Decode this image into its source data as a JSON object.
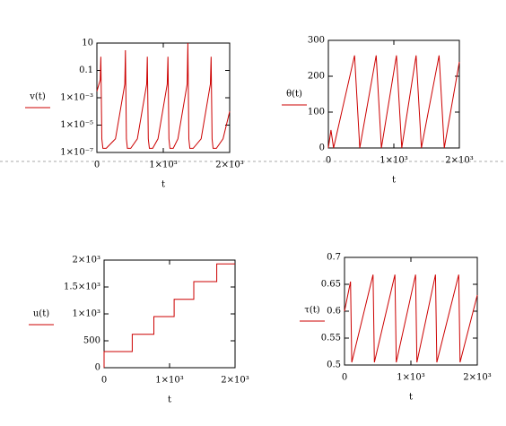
{
  "chart_data": [
    {
      "type": "line",
      "ylabel": "v(t)",
      "xlabel": "t",
      "log_y": true,
      "color": "#cc0000",
      "x": [
        0,
        50,
        60,
        75,
        90,
        140,
        280,
        420,
        430,
        445,
        460,
        510,
        610,
        750,
        760,
        775,
        790,
        840,
        920,
        1060,
        1070,
        1085,
        1100,
        1150,
        1220,
        1360,
        1370,
        1385,
        1400,
        1450,
        1570,
        1710,
        1720,
        1735,
        1750,
        1800,
        1900,
        2000
      ],
      "values": [
        0.003,
        0.02,
        1,
        1e-06,
        2e-07,
        2e-07,
        1e-06,
        0.01,
        3,
        1e-06,
        2e-07,
        2e-07,
        1e-06,
        0.01,
        1,
        1e-06,
        2e-07,
        2e-07,
        1e-06,
        0.01,
        1,
        1e-06,
        2e-07,
        2e-07,
        1e-06,
        0.01,
        10,
        1e-06,
        2e-07,
        2e-07,
        1e-06,
        0.01,
        1,
        1e-06,
        2e-07,
        2e-07,
        1e-06,
        0.0001
      ],
      "xlim": [
        0,
        2000
      ],
      "xticks": [
        0,
        {
          "value": 1000,
          "label": "1×10³"
        },
        {
          "value": 2000,
          "label": "2×10³"
        }
      ],
      "ylim": [
        1e-07,
        10
      ],
      "yticks": [
        10,
        0.1,
        {
          "value": 0.001,
          "label": "1×10⁻³"
        },
        {
          "value": 1e-05,
          "label": "1×10⁻⁵"
        },
        {
          "value": 1e-07,
          "label": "1×10⁻⁷"
        }
      ]
    },
    {
      "type": "line",
      "ylabel": "θ(t)",
      "xlabel": "t",
      "log_y": false,
      "color": "#cc0000",
      "x": [
        0,
        40,
        80,
        400,
        480,
        730,
        810,
        1040,
        1120,
        1340,
        1420,
        1690,
        1770,
        2000
      ],
      "values": [
        0,
        50,
        0,
        258,
        0,
        258,
        0,
        258,
        0,
        258,
        0,
        258,
        0,
        240
      ],
      "xlim": [
        0,
        2000
      ],
      "xticks": [
        0,
        {
          "value": 1000,
          "label": "1×10³"
        },
        {
          "value": 2000,
          "label": "2×10³"
        }
      ],
      "ylim": [
        0,
        300
      ],
      "yticks": [
        0,
        100,
        200,
        300
      ]
    },
    {
      "type": "line",
      "ylabel": "u(t)",
      "xlabel": "t",
      "log_y": false,
      "color": "#cc0000",
      "x": [
        0,
        0,
        430,
        430,
        760,
        760,
        1070,
        1070,
        1370,
        1370,
        1720,
        1720,
        2000
      ],
      "values": [
        0,
        300,
        300,
        620,
        620,
        950,
        950,
        1270,
        1270,
        1600,
        1600,
        1930,
        1930
      ],
      "xlim": [
        0,
        2000
      ],
      "xticks": [
        0,
        {
          "value": 1000,
          "label": "1×10³"
        },
        {
          "value": 2000,
          "label": "2×10³"
        }
      ],
      "ylim": [
        0,
        2000
      ],
      "yticks": [
        0,
        500,
        {
          "value": 1000,
          "label": "1×10³"
        },
        {
          "value": 1500,
          "label": "1.5×10³"
        },
        {
          "value": 2000,
          "label": "2×10³"
        }
      ]
    },
    {
      "type": "line",
      "ylabel": "τ(t)",
      "xlabel": "t",
      "log_y": false,
      "color": "#cc0000",
      "x": [
        0,
        90,
        110,
        430,
        450,
        760,
        780,
        1070,
        1090,
        1370,
        1390,
        1720,
        1740,
        2000
      ],
      "values": [
        0.6,
        0.655,
        0.505,
        0.668,
        0.505,
        0.668,
        0.505,
        0.668,
        0.505,
        0.668,
        0.505,
        0.668,
        0.505,
        0.63
      ],
      "xlim": [
        0,
        2000
      ],
      "xticks": [
        0,
        {
          "value": 1000,
          "label": "1×10³"
        },
        {
          "value": 2000,
          "label": "2×10³"
        }
      ],
      "ylim": [
        0.5,
        0.7
      ],
      "yticks": [
        0.5,
        0.55,
        0.6,
        0.65,
        0.7
      ]
    }
  ]
}
